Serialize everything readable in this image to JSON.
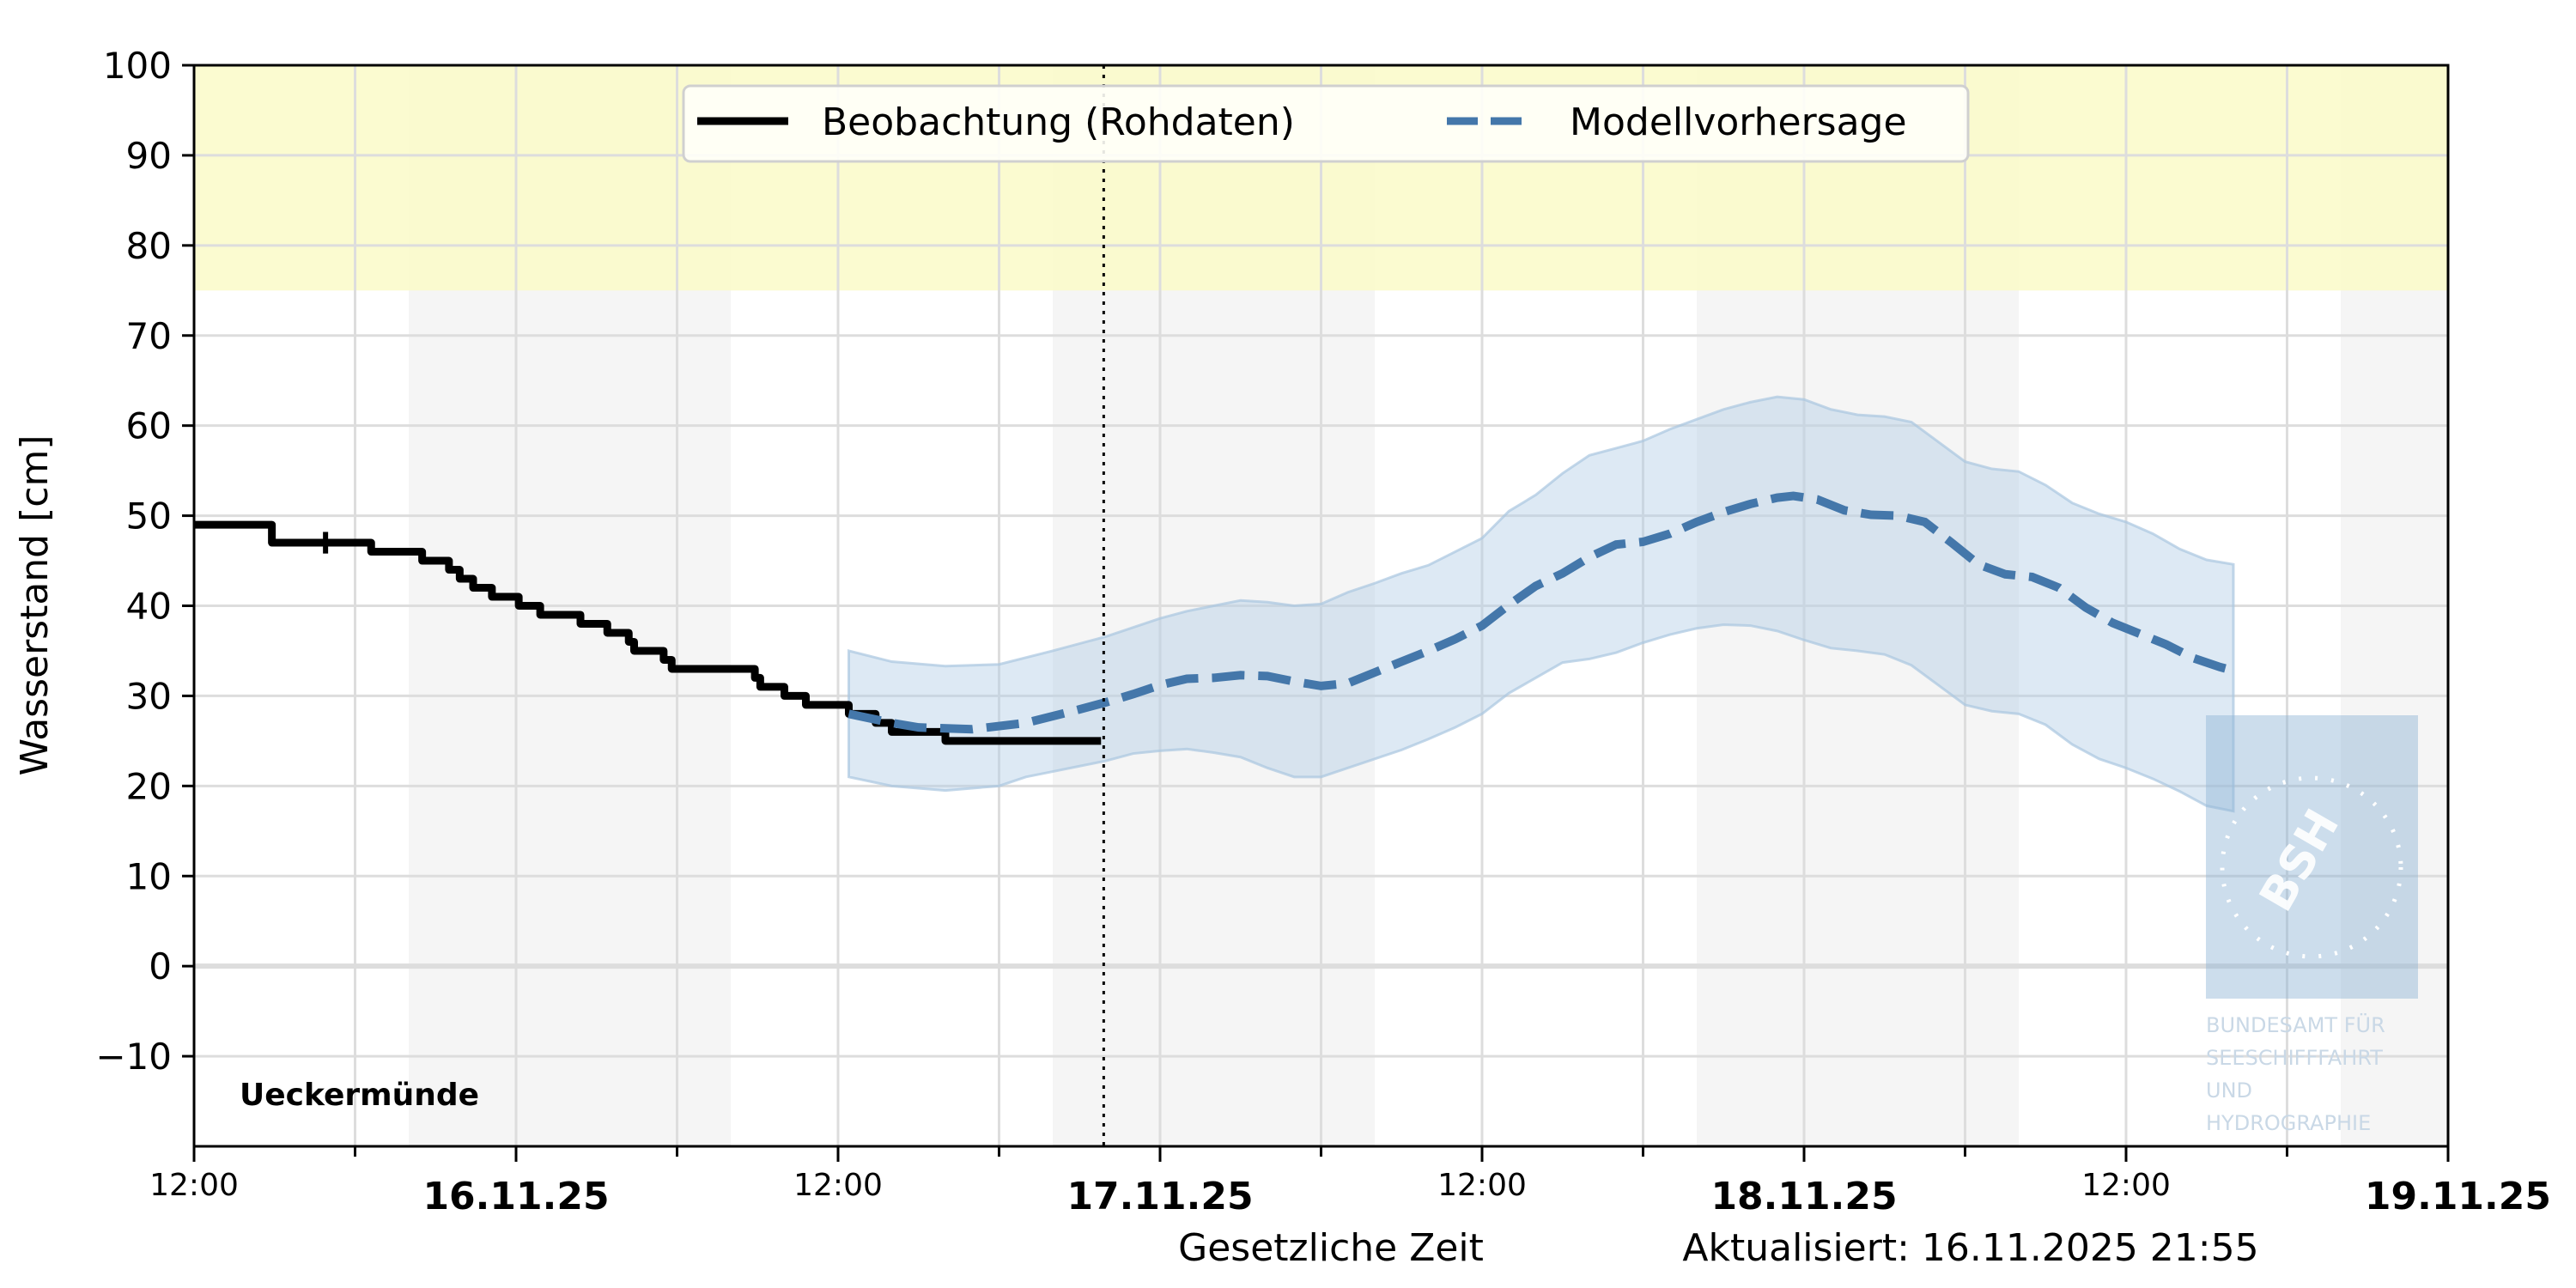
{
  "chart_data": {
    "type": "line",
    "title": "",
    "station": "Ueckermünde",
    "xlabel": "Gesetzliche Zeit",
    "ylabel": "Wasserstand [cm]",
    "ylim": [
      -20,
      100
    ],
    "yticks": [
      -10,
      0,
      10,
      20,
      30,
      40,
      50,
      60,
      70,
      80,
      90,
      100
    ],
    "ytick_labels": [
      "−10",
      "0",
      "10",
      "20",
      "30",
      "40",
      "50",
      "60",
      "70",
      "80",
      "90",
      "100"
    ],
    "x_unit": "hours since 15.11.25 12:00",
    "xlim": [
      0,
      84
    ],
    "xticks_major": [
      {
        "h": 12,
        "label": "16.11.25"
      },
      {
        "h": 36,
        "label": "17.11.25"
      },
      {
        "h": 60,
        "label": "18.11.25"
      },
      {
        "h": 84,
        "label": "19.11.25"
      }
    ],
    "xticks_minor": [
      {
        "h": 0,
        "label": "12:00"
      },
      {
        "h": 24,
        "label": "12:00"
      },
      {
        "h": 48,
        "label": "12:00"
      },
      {
        "h": 72,
        "label": "12:00"
      }
    ],
    "xgrid_step_hours": 6,
    "grid": true,
    "legend_position": "upper center",
    "legend": [
      {
        "label": "Beobachtung (Rohdaten)",
        "style": "solid",
        "color": "#000000"
      },
      {
        "label": "Modellvorhersage",
        "style": "dashed",
        "color": "#4477aa"
      }
    ],
    "annotations": {
      "now_line_h": 33.9,
      "updated": "Aktualisiert: 16.11.2025 21:55",
      "warning_band": {
        "from": 75,
        "to": 100,
        "color": "#fafac8"
      },
      "night_bands": [
        [
          8,
          20
        ],
        [
          32,
          44
        ],
        [
          56,
          68
        ],
        [
          80,
          84
        ]
      ]
    },
    "series": [
      {
        "name": "Beobachtung (Rohdaten)",
        "type": "step",
        "points": [
          [
            0,
            49
          ],
          [
            2.9,
            49
          ],
          [
            2.9,
            47
          ],
          [
            6.6,
            47
          ],
          [
            6.6,
            46
          ],
          [
            8.5,
            46
          ],
          [
            8.5,
            45
          ],
          [
            9.5,
            45
          ],
          [
            9.5,
            44
          ],
          [
            9.9,
            44
          ],
          [
            9.9,
            43
          ],
          [
            10.4,
            43
          ],
          [
            10.4,
            42
          ],
          [
            11.1,
            42
          ],
          [
            11.1,
            41
          ],
          [
            12.1,
            41
          ],
          [
            12.1,
            40
          ],
          [
            12.9,
            40
          ],
          [
            12.9,
            39
          ],
          [
            14.4,
            39
          ],
          [
            14.4,
            38
          ],
          [
            15.4,
            38
          ],
          [
            15.4,
            37
          ],
          [
            16.2,
            37
          ],
          [
            16.2,
            36
          ],
          [
            16.4,
            36
          ],
          [
            16.4,
            35
          ],
          [
            17.5,
            35
          ],
          [
            17.5,
            34
          ],
          [
            17.8,
            34
          ],
          [
            17.8,
            33
          ],
          [
            20.9,
            33
          ],
          [
            20.9,
            32
          ],
          [
            21.1,
            32
          ],
          [
            21.1,
            31
          ],
          [
            22.0,
            31
          ],
          [
            22.0,
            30
          ],
          [
            22.8,
            30
          ],
          [
            22.8,
            29
          ],
          [
            24.4,
            29
          ],
          [
            24.4,
            28
          ],
          [
            25.4,
            28
          ],
          [
            25.4,
            27
          ],
          [
            26.0,
            27
          ],
          [
            26.0,
            26
          ],
          [
            28.0,
            26
          ],
          [
            28.0,
            25
          ],
          [
            33.8,
            25
          ]
        ]
      },
      {
        "name": "Modellvorhersage",
        "type": "line",
        "points": [
          [
            24.4,
            28
          ],
          [
            26,
            27
          ],
          [
            27,
            26.5
          ],
          [
            29,
            26.3
          ],
          [
            31,
            27
          ],
          [
            33,
            28.5
          ],
          [
            34,
            29.3
          ],
          [
            35,
            30.2
          ],
          [
            36,
            31.2
          ],
          [
            37,
            31.9
          ],
          [
            38,
            32
          ],
          [
            39,
            32.3
          ],
          [
            40,
            32.2
          ],
          [
            41,
            31.6
          ],
          [
            42,
            31.1
          ],
          [
            43,
            31.4
          ],
          [
            44,
            32.6
          ],
          [
            45,
            33.8
          ],
          [
            46,
            35
          ],
          [
            47,
            36.3
          ],
          [
            48,
            37.8
          ],
          [
            49,
            40.1
          ],
          [
            50,
            42.2
          ],
          [
            51,
            43.6
          ],
          [
            52,
            45.4
          ],
          [
            53,
            46.8
          ],
          [
            54,
            47.1
          ],
          [
            55,
            48
          ],
          [
            56,
            49.3
          ],
          [
            57,
            50.4
          ],
          [
            58,
            51.3
          ],
          [
            59,
            52
          ],
          [
            59.6,
            52.2
          ],
          [
            60.5,
            51.8
          ],
          [
            61.5,
            50.6
          ],
          [
            62.5,
            50.1
          ],
          [
            63.5,
            50
          ],
          [
            64.5,
            49.3
          ],
          [
            65.5,
            47
          ],
          [
            66.5,
            44.6
          ],
          [
            67.5,
            43.5
          ],
          [
            68.5,
            43.2
          ],
          [
            69.5,
            42
          ],
          [
            70.5,
            39.8
          ],
          [
            71.5,
            38.1
          ],
          [
            72.5,
            36.9
          ],
          [
            73.5,
            35.7
          ],
          [
            74.5,
            34.2
          ],
          [
            75.5,
            33.2
          ],
          [
            76,
            32.8
          ]
        ]
      },
      {
        "name": "Vorhersage-Unsicherheit (oben)",
        "type": "band_upper",
        "points": [
          [
            24.4,
            35
          ],
          [
            26,
            33.8
          ],
          [
            28,
            33.3
          ],
          [
            30,
            33.5
          ],
          [
            32,
            35
          ],
          [
            34,
            36.6
          ],
          [
            35,
            37.6
          ],
          [
            36,
            38.6
          ],
          [
            37,
            39.4
          ],
          [
            38,
            40
          ],
          [
            39,
            40.6
          ],
          [
            40,
            40.4
          ],
          [
            41,
            40
          ],
          [
            42,
            40.2
          ],
          [
            43,
            41.5
          ],
          [
            44,
            42.5
          ],
          [
            45,
            43.6
          ],
          [
            46,
            44.5
          ],
          [
            47,
            46
          ],
          [
            48,
            47.5
          ],
          [
            49,
            50.5
          ],
          [
            50,
            52.3
          ],
          [
            51,
            54.7
          ],
          [
            52,
            56.7
          ],
          [
            53,
            57.5
          ],
          [
            54,
            58.3
          ],
          [
            55,
            59.6
          ],
          [
            56,
            60.7
          ],
          [
            57,
            61.8
          ],
          [
            58,
            62.6
          ],
          [
            59,
            63.2
          ],
          [
            60,
            62.9
          ],
          [
            61,
            61.8
          ],
          [
            62,
            61.2
          ],
          [
            63,
            61
          ],
          [
            64,
            60.4
          ],
          [
            65,
            58.2
          ],
          [
            66,
            56
          ],
          [
            67,
            55.2
          ],
          [
            68,
            54.9
          ],
          [
            69,
            53.4
          ],
          [
            70,
            51.4
          ],
          [
            71,
            50.2
          ],
          [
            72,
            49.3
          ],
          [
            73,
            48
          ],
          [
            74,
            46.3
          ],
          [
            75,
            45.1
          ],
          [
            76,
            44.6
          ]
        ]
      },
      {
        "name": "Vorhersage-Unsicherheit (unten)",
        "type": "band_lower",
        "points": [
          [
            24.4,
            21
          ],
          [
            26,
            20
          ],
          [
            28,
            19.5
          ],
          [
            30,
            20
          ],
          [
            31,
            21
          ],
          [
            32,
            21.6
          ],
          [
            33,
            22.2
          ],
          [
            34,
            22.8
          ],
          [
            35,
            23.6
          ],
          [
            36,
            23.9
          ],
          [
            37,
            24.1
          ],
          [
            38,
            23.7
          ],
          [
            39,
            23.2
          ],
          [
            40,
            22
          ],
          [
            41,
            21
          ],
          [
            42,
            21
          ],
          [
            43,
            22
          ],
          [
            44,
            23
          ],
          [
            45,
            24
          ],
          [
            46,
            25.2
          ],
          [
            47,
            26.5
          ],
          [
            48,
            28
          ],
          [
            49,
            30.3
          ],
          [
            50,
            32
          ],
          [
            51,
            33.7
          ],
          [
            52,
            34.1
          ],
          [
            53,
            34.8
          ],
          [
            54,
            35.9
          ],
          [
            55,
            36.8
          ],
          [
            56,
            37.5
          ],
          [
            57,
            37.9
          ],
          [
            58,
            37.8
          ],
          [
            59,
            37.2
          ],
          [
            60,
            36.2
          ],
          [
            61,
            35.3
          ],
          [
            62,
            35
          ],
          [
            63,
            34.6
          ],
          [
            64,
            33.4
          ],
          [
            65,
            31.2
          ],
          [
            66,
            29
          ],
          [
            67,
            28.3
          ],
          [
            68,
            28
          ],
          [
            69,
            26.8
          ],
          [
            70,
            24.6
          ],
          [
            71,
            23
          ],
          [
            72,
            22
          ],
          [
            73,
            20.8
          ],
          [
            74,
            19.4
          ],
          [
            75,
            17.8
          ],
          [
            76,
            17.2
          ]
        ]
      }
    ]
  },
  "logo": {
    "emblem": "BSH",
    "lines": [
      "BUNDESAMT FÜR",
      "SEESCHIFFFAHRT",
      "UND",
      "HYDROGRAPHIE"
    ]
  },
  "colors": {
    "forecast": "#4477aa",
    "band_fill": "#b3cfe6",
    "band_edge": "#a9c6e0",
    "observation": "#000000",
    "grid": "#dddddd",
    "night": "#f5f5f5",
    "warning": "#fafac8"
  }
}
